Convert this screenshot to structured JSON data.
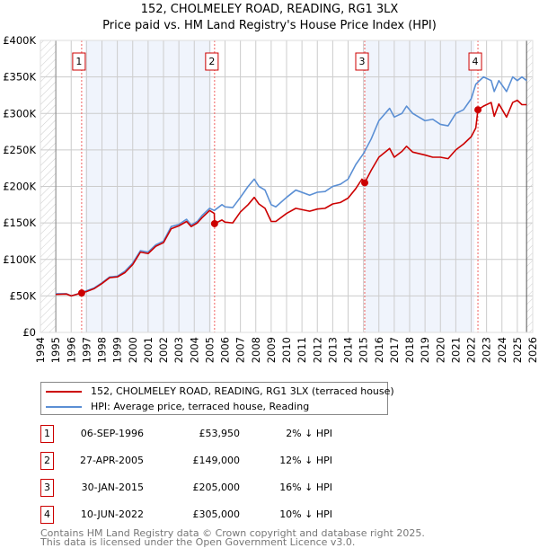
{
  "chart_data": {
    "type": "line",
    "title": "152, CHOLMELEY ROAD, READING, RG1 3LX",
    "subtitle": "Price paid vs. HM Land Registry's House Price Index (HPI)",
    "xlim": [
      1994,
      2026
    ],
    "ylim": [
      0,
      400000
    ],
    "y_ticks": [
      {
        "v": 0,
        "label": "£0"
      },
      {
        "v": 50000,
        "label": "£50K"
      },
      {
        "v": 100000,
        "label": "£100K"
      },
      {
        "v": 150000,
        "label": "£150K"
      },
      {
        "v": 200000,
        "label": "£200K"
      },
      {
        "v": 250000,
        "label": "£250K"
      },
      {
        "v": 300000,
        "label": "£300K"
      },
      {
        "v": 350000,
        "label": "£350K"
      },
      {
        "v": 400000,
        "label": "£400K"
      }
    ],
    "x_ticks": [
      "1994",
      "1995",
      "1996",
      "1997",
      "1998",
      "1999",
      "2000",
      "2001",
      "2002",
      "2003",
      "2004",
      "2005",
      "2006",
      "2007",
      "2008",
      "2009",
      "2010",
      "2011",
      "2012",
      "2013",
      "2014",
      "2015",
      "2016",
      "2017",
      "2018",
      "2019",
      "2020",
      "2021",
      "2022",
      "2023",
      "2024",
      "2025",
      "2026"
    ],
    "grid": true,
    "data_range": [
      1995,
      2025.6
    ],
    "series": [
      {
        "name": "152, CHOLMELEY ROAD, READING, RG1 3LX (terraced house)",
        "color": "#cc0000",
        "x": [
          1995,
          1995.7,
          1996,
          1996.68,
          1997,
          1997.5,
          1998,
          1998.5,
          1999,
          1999.5,
          2000,
          2000.5,
          2001,
          2001.5,
          2002,
          2002.5,
          2003,
          2003.5,
          2003.8,
          2004.2,
          2004.5,
          2005,
          2005.3,
          2005.32,
          2005.8,
          2006,
          2006.5,
          2007,
          2007.5,
          2007.9,
          2008.2,
          2008.6,
          2009,
          2009.3,
          2010,
          2010.6,
          2011.5,
          2012,
          2012.5,
          2013,
          2013.5,
          2014,
          2014.5,
          2014.9,
          2015.08,
          2015.5,
          2016,
          2016.7,
          2017,
          2017.5,
          2017.8,
          2018.2,
          2019,
          2019.5,
          2020,
          2020.5,
          2021,
          2021.5,
          2022,
          2022.3,
          2022.44,
          2022.8,
          2023.3,
          2023.5,
          2023.8,
          2024.3,
          2024.7,
          2025,
          2025.3,
          2025.6
        ],
        "y": [
          52000,
          52500,
          50000,
          53950,
          56000,
          60000,
          67000,
          75000,
          76000,
          82000,
          93000,
          110000,
          108000,
          118000,
          123000,
          142000,
          146000,
          152000,
          145000,
          150000,
          157000,
          167000,
          163000,
          149000,
          154000,
          151000,
          150000,
          165000,
          175000,
          185000,
          176000,
          170000,
          152000,
          152000,
          163000,
          170000,
          166000,
          169000,
          170000,
          176000,
          178000,
          184000,
          197000,
          210000,
          205000,
          222000,
          240000,
          252000,
          240000,
          248000,
          255000,
          247000,
          243000,
          240000,
          240000,
          238000,
          250000,
          258000,
          268000,
          280000,
          305000,
          310000,
          315000,
          296000,
          313000,
          295000,
          315000,
          318000,
          312000,
          312000
        ]
      },
      {
        "name": "HPI: Average price, terraced house, Reading",
        "color": "#5b8fd4",
        "x": [
          1995,
          1995.7,
          1996,
          1996.68,
          1997,
          1997.5,
          1998,
          1998.5,
          1999,
          1999.5,
          2000,
          2000.5,
          2001,
          2001.5,
          2002,
          2002.5,
          2003,
          2003.5,
          2003.8,
          2004.2,
          2004.5,
          2005,
          2005.3,
          2005.8,
          2006,
          2006.5,
          2007,
          2007.5,
          2007.9,
          2008.2,
          2008.6,
          2009,
          2009.3,
          2010,
          2010.6,
          2011.5,
          2012,
          2012.5,
          2013,
          2013.5,
          2014,
          2014.5,
          2015,
          2015.5,
          2016,
          2016.7,
          2017,
          2017.5,
          2017.8,
          2018.2,
          2019,
          2019.5,
          2020,
          2020.5,
          2021,
          2021.5,
          2022,
          2022.3,
          2022.8,
          2023.3,
          2023.5,
          2023.8,
          2024.3,
          2024.7,
          2025,
          2025.3,
          2025.6
        ],
        "y": [
          53000,
          53000,
          50000,
          54500,
          57000,
          61000,
          68000,
          76000,
          77000,
          84000,
          95000,
          112000,
          110000,
          120000,
          125000,
          145000,
          148000,
          155000,
          147000,
          152000,
          160000,
          170000,
          167000,
          175000,
          172000,
          171000,
          185000,
          200000,
          210000,
          200000,
          195000,
          175000,
          172000,
          185000,
          195000,
          188000,
          192000,
          193000,
          200000,
          203000,
          210000,
          230000,
          245000,
          265000,
          290000,
          307000,
          295000,
          300000,
          310000,
          300000,
          290000,
          292000,
          285000,
          283000,
          300000,
          305000,
          320000,
          340000,
          350000,
          345000,
          330000,
          345000,
          330000,
          350000,
          345000,
          350000,
          345000
        ]
      }
    ],
    "sales": [
      {
        "n": "1",
        "x": 1996.68,
        "price": 53950
      },
      {
        "n": "2",
        "x": 2005.32,
        "price": 149000
      },
      {
        "n": "3",
        "x": 2015.08,
        "price": 205000
      },
      {
        "n": "4",
        "x": 2022.44,
        "price": 305000
      }
    ],
    "shaded_ranges": [
      [
        1996.9,
        2005.1
      ],
      [
        2015.1,
        2022.2
      ]
    ]
  },
  "title_line1": "152, CHOLMELEY ROAD, READING, RG1 3LX",
  "title_line2": "Price paid vs. HM Land Registry's House Price Index (HPI)",
  "legend": [
    {
      "label": "152, CHOLMELEY ROAD, READING, RG1 3LX (terraced house)",
      "color": "#cc0000"
    },
    {
      "label": "HPI: Average price, terraced house, Reading",
      "color": "#5b8fd4"
    }
  ],
  "transactions": [
    {
      "n": "1",
      "date": "06-SEP-1996",
      "price": "£53,950",
      "hpi": "2% ↓ HPI"
    },
    {
      "n": "2",
      "date": "27-APR-2005",
      "price": "£149,000",
      "hpi": "12% ↓ HPI"
    },
    {
      "n": "3",
      "date": "30-JAN-2015",
      "price": "£205,000",
      "hpi": "16% ↓ HPI"
    },
    {
      "n": "4",
      "date": "10-JUN-2022",
      "price": "£305,000",
      "hpi": "10% ↓ HPI"
    }
  ],
  "footer_line1": "Contains HM Land Registry data © Crown copyright and database right 2025.",
  "footer_line2": "This data is licensed under the Open Government Licence v3.0."
}
